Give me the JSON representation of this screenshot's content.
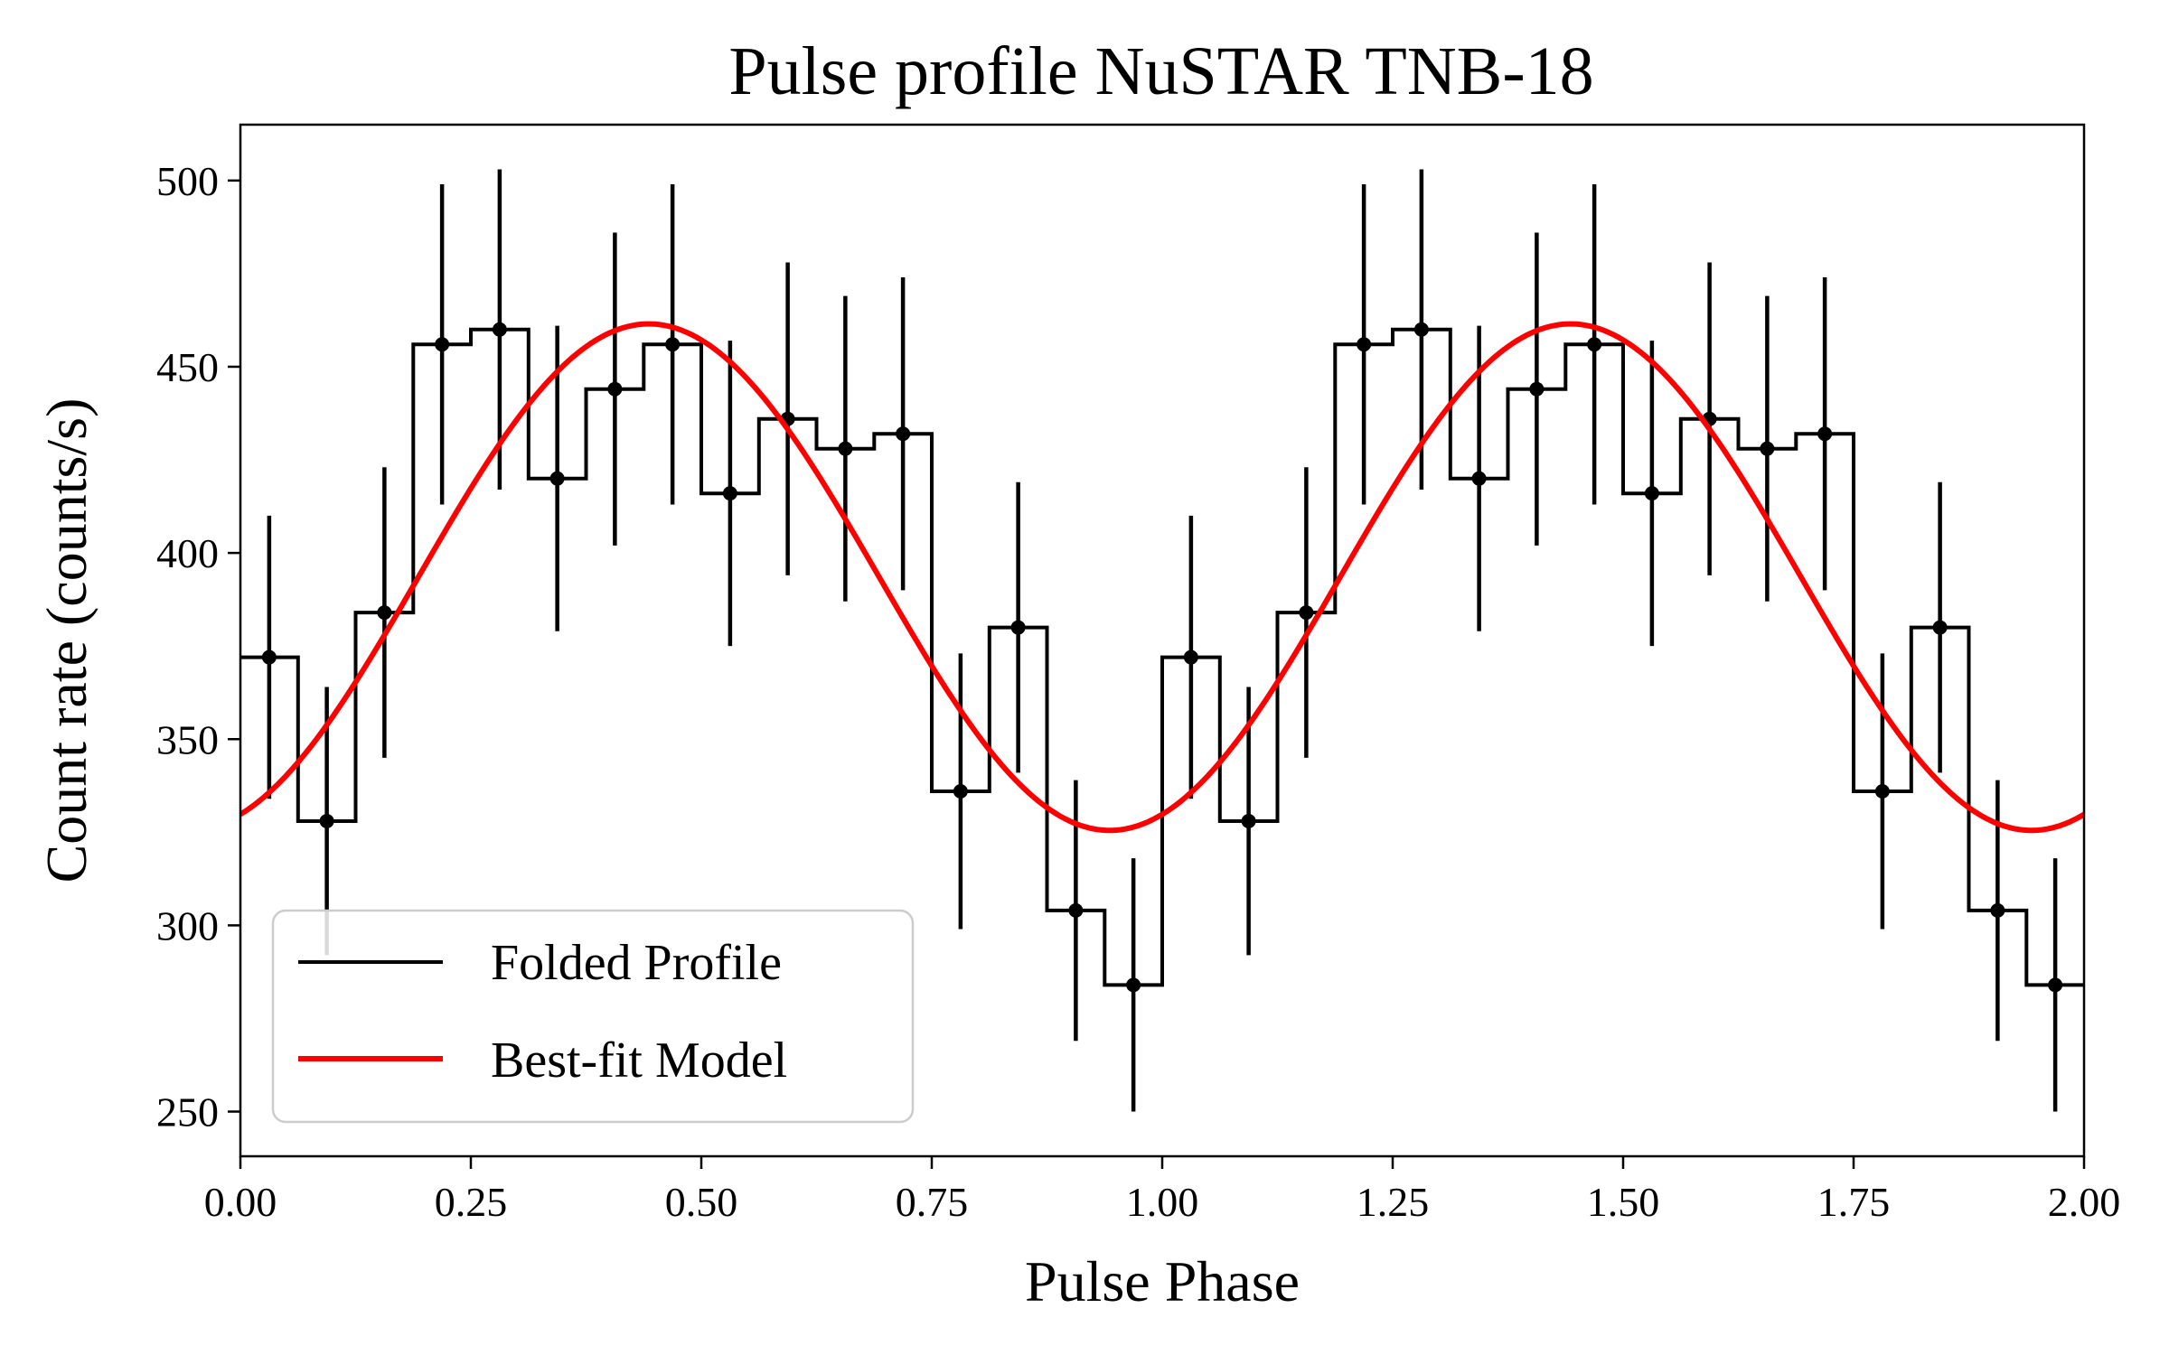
{
  "chart_data": {
    "type": "line",
    "title": "Pulse profile NuSTAR TNB-18",
    "xlabel": "Pulse Phase",
    "ylabel": "Count rate (counts/s)",
    "xlim": [
      0.0,
      2.0
    ],
    "ylim": [
      238,
      515
    ],
    "xticks": [
      0.0,
      0.25,
      0.5,
      0.75,
      1.0,
      1.25,
      1.5,
      1.75,
      2.0
    ],
    "xtick_labels": [
      "0.00",
      "0.25",
      "0.50",
      "0.75",
      "1.00",
      "1.25",
      "1.50",
      "1.75",
      "2.00"
    ],
    "yticks": [
      250,
      300,
      350,
      400,
      450,
      500
    ],
    "ytick_labels": [
      "250",
      "300",
      "350",
      "400",
      "450",
      "500"
    ],
    "legend": {
      "position": "lower-left",
      "entries": [
        "Folded Profile",
        "Best-fit Model"
      ]
    },
    "series": [
      {
        "name": "Folded Profile",
        "style": "step-with-errorbars",
        "color": "#000000",
        "bin_width": 0.0625,
        "x": [
          0.03125,
          0.09375,
          0.15625,
          0.21875,
          0.28125,
          0.34375,
          0.40625,
          0.46875,
          0.53125,
          0.59375,
          0.65625,
          0.71875,
          0.78125,
          0.84375,
          0.90625,
          0.96875,
          1.03125,
          1.09375,
          1.15625,
          1.21875,
          1.28125,
          1.34375,
          1.40625,
          1.46875,
          1.53125,
          1.59375,
          1.65625,
          1.71875,
          1.78125,
          1.84375,
          1.90625,
          1.96875
        ],
        "y": [
          372,
          328,
          384,
          456,
          460,
          420,
          444,
          456,
          416,
          436,
          428,
          432,
          336,
          380,
          304,
          284,
          372,
          328,
          384,
          456,
          460,
          420,
          444,
          456,
          416,
          436,
          428,
          432,
          336,
          380,
          304,
          284
        ],
        "yerr": [
          38,
          36,
          39,
          43,
          43,
          41,
          42,
          43,
          41,
          42,
          41,
          42,
          37,
          39,
          35,
          34,
          38,
          36,
          39,
          43,
          43,
          41,
          42,
          43,
          41,
          42,
          41,
          42,
          37,
          39,
          35,
          34
        ]
      },
      {
        "name": "Best-fit Model",
        "style": "line",
        "color": "#ff0000",
        "model": "sinusoid",
        "mean": 393.5,
        "amplitude": 68,
        "peak_phase": 0.443,
        "period": 1.0
      }
    ]
  }
}
